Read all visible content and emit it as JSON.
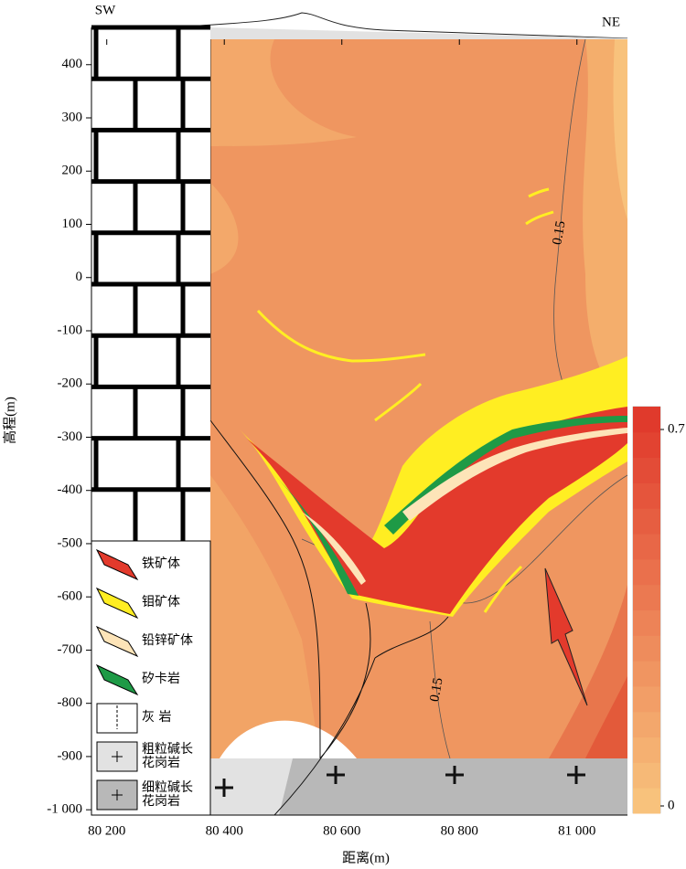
{
  "chart_data": {
    "type": "section",
    "left_label": "SW",
    "right_label": "NE",
    "xlabel": "距离(m)",
    "ylabel": "高程(m)",
    "xlim": [
      80174,
      81086
    ],
    "ylim": [
      -1010,
      470
    ],
    "xticks": [
      {
        "value": 80200,
        "label": "80 200"
      },
      {
        "value": 80400,
        "label": "80 400"
      },
      {
        "value": 80600,
        "label": "80 600"
      },
      {
        "value": 80800,
        "label": "80 800"
      },
      {
        "value": 81000,
        "label": "81 000"
      }
    ],
    "yticks": [
      400,
      300,
      200,
      100,
      0,
      -100,
      -200,
      -300,
      -400,
      -500,
      -600,
      -700,
      -800,
      -900,
      {
        "value": -1000,
        "label": "-1 000"
      }
    ],
    "colorbar": {
      "lim": [
        0,
        0.7
      ],
      "ticks": [
        0,
        0.7
      ],
      "colors": [
        "#f8c27c",
        "#e03a2c"
      ]
    },
    "contour_labels": [
      0.15,
      0.15
    ],
    "legend": [
      {
        "name": "铁矿体",
        "color": "#e33a2c"
      },
      {
        "name": "钼矿体",
        "color": "#ffee22"
      },
      {
        "name": "铅锌矿体",
        "color": "#fde4b8"
      },
      {
        "name": "矽卡岩",
        "color": "#1e9a46"
      },
      {
        "name": "灰 岩",
        "color": "#ffffff"
      },
      {
        "name": "粗粒碱长花岗岩",
        "color": "#e2e2e2"
      },
      {
        "name": "细粒碱长花岗岩",
        "color": "#b8b8b8"
      }
    ]
  }
}
